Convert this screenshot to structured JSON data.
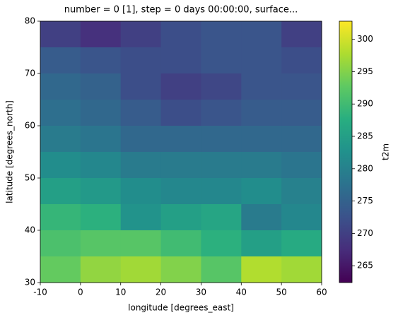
{
  "chart_data": {
    "type": "heatmap",
    "title": "number = 0 [1], step = 0 days 00:00:00, surface...",
    "x_label": "longitude [degrees_east]",
    "y_label": "latitude [degrees_north]",
    "colorbar_label": "t2m",
    "x": [
      -10,
      0,
      10,
      20,
      30,
      40,
      50,
      60
    ],
    "y": [
      80,
      75,
      70,
      65,
      60,
      55,
      50,
      45,
      40,
      35,
      30
    ],
    "z": [
      [
        270,
        268,
        270,
        272,
        273,
        273,
        270
      ],
      [
        274,
        273,
        272,
        272,
        273,
        273,
        272
      ],
      [
        276,
        275,
        272,
        270,
        271,
        273,
        273
      ],
      [
        277,
        276,
        274,
        272,
        273,
        274,
        274
      ],
      [
        279,
        278,
        276,
        276,
        276,
        276,
        276
      ],
      [
        282,
        281,
        279,
        279,
        279,
        279,
        278
      ],
      [
        285,
        284,
        282,
        281,
        281,
        282,
        280
      ],
      [
        289,
        288,
        283,
        285,
        286,
        279,
        281
      ],
      [
        291,
        292,
        292,
        290,
        288,
        285,
        287
      ],
      [
        293,
        296,
        297,
        295,
        292,
        298,
        297
      ]
    ],
    "colormap": "viridis",
    "xlim": [
      -10,
      60
    ],
    "ylim": [
      30,
      80
    ],
    "clim": [
      262.4,
      302.8
    ],
    "xticks": [
      -10,
      0,
      10,
      20,
      30,
      40,
      50,
      60
    ],
    "yticks": [
      30,
      40,
      50,
      60,
      70,
      80
    ],
    "cticks": [
      265,
      270,
      275,
      280,
      285,
      290,
      295,
      300
    ]
  }
}
